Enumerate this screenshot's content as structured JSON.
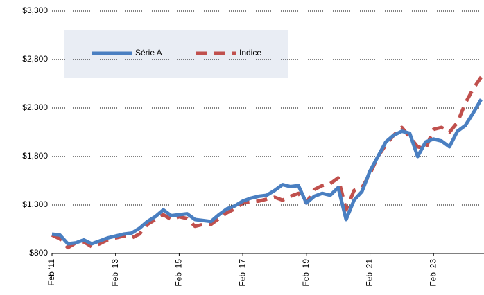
{
  "chart_data": {
    "type": "line",
    "categories": [
      "Feb '11",
      null,
      null,
      null,
      null,
      null,
      null,
      null,
      "Feb '13",
      null,
      null,
      null,
      null,
      null,
      null,
      null,
      "Feb '15",
      null,
      null,
      null,
      null,
      null,
      null,
      null,
      "Feb '17",
      null,
      null,
      null,
      null,
      null,
      null,
      null,
      "Feb '19",
      null,
      null,
      null,
      null,
      null,
      null,
      null,
      "Feb '21",
      null,
      null,
      null,
      null,
      null,
      null,
      null,
      "Feb '23",
      null,
      null,
      null,
      null,
      null,
      null
    ],
    "series": [
      {
        "name": "Série A",
        "color": "#4a7fc1",
        "dash": false,
        "values": [
          1000,
          990,
          900,
          910,
          940,
          900,
          930,
          960,
          980,
          1000,
          1010,
          1060,
          1130,
          1180,
          1250,
          1190,
          1200,
          1210,
          1150,
          1140,
          1130,
          1200,
          1260,
          1290,
          1340,
          1370,
          1390,
          1400,
          1450,
          1510,
          1490,
          1500,
          1320,
          1390,
          1420,
          1400,
          1480,
          1150,
          1350,
          1440,
          1650,
          1800,
          1950,
          2020,
          2060,
          2040,
          1800,
          1950,
          1980,
          1960,
          1900,
          2060,
          2120,
          2250,
          2390
        ]
      },
      {
        "name": "Indice",
        "color": "#c0504d",
        "dash": true,
        "values": [
          990,
          950,
          860,
          910,
          920,
          870,
          900,
          940,
          960,
          980,
          960,
          1000,
          1100,
          1150,
          1200,
          1150,
          1180,
          1160,
          1080,
          1100,
          1100,
          1160,
          1220,
          1260,
          1320,
          1330,
          1340,
          1360,
          1380,
          1350,
          1390,
          1420,
          1320,
          1460,
          1500,
          1520,
          1580,
          1250,
          1450,
          1480,
          1620,
          1800,
          1920,
          2020,
          2100,
          2000,
          1900,
          1880,
          2080,
          2100,
          2050,
          2150,
          2350,
          2500,
          2620
        ]
      }
    ],
    "ylim": [
      800,
      3300
    ],
    "yticks": [
      {
        "value": 800,
        "label": "$800"
      },
      {
        "value": 1300,
        "label": "$1,300"
      },
      {
        "value": 1800,
        "label": "$1,800"
      },
      {
        "value": 2300,
        "label": "$2,300"
      },
      {
        "value": 2800,
        "label": "$2,800"
      },
      {
        "value": 3300,
        "label": "$3,300"
      }
    ],
    "grid": true
  }
}
